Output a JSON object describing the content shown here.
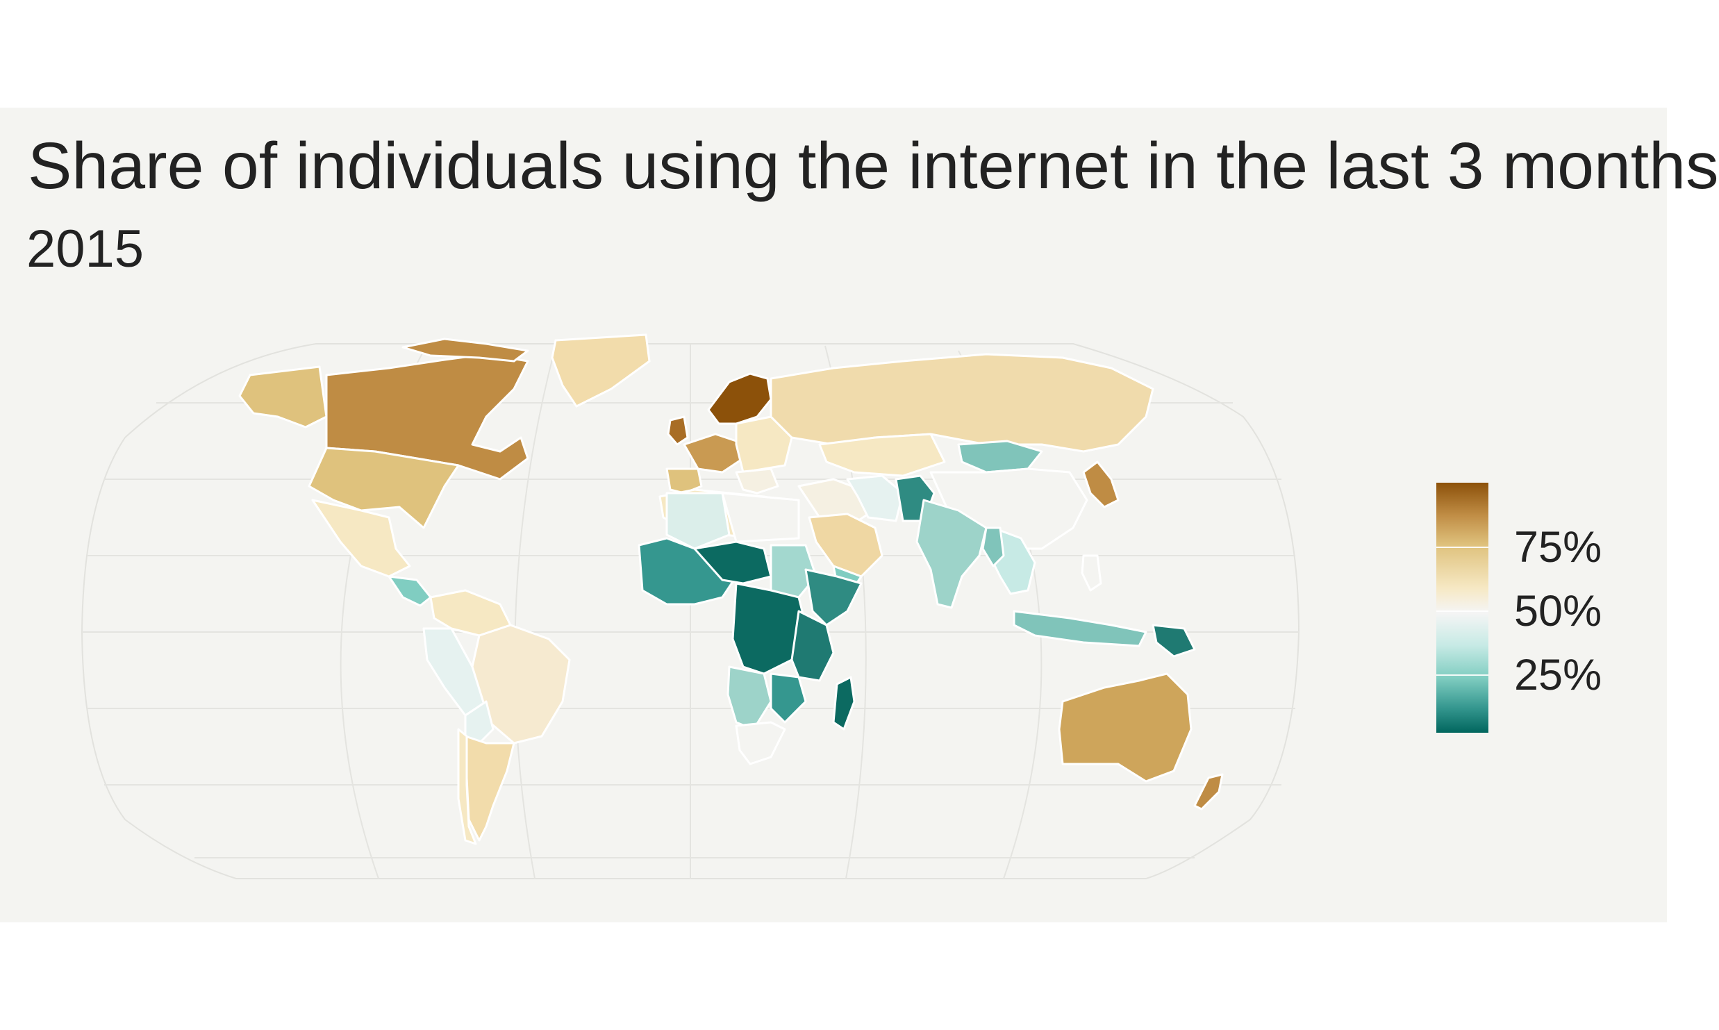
{
  "title": "Share of individuals using the internet in the last 3 months",
  "subtitle": "2015",
  "legend": {
    "labels": [
      "75%",
      "50%",
      "25%"
    ],
    "values": [
      0.75,
      0.5,
      0.25
    ],
    "range": [
      0.0,
      0.95
    ]
  },
  "colors": {
    "panel_background": "#f4f4f1",
    "border": "#ffffff",
    "no_data": "#f4f4f1",
    "scale": [
      "#01665e",
      "#35978f",
      "#80cdc1",
      "#c7eae5",
      "#f5f5f5",
      "#f6e8c3",
      "#dfc27d",
      "#bf8c44",
      "#8c510a"
    ]
  },
  "map_data": {
    "projection": "Robinson",
    "regions": [
      {
        "name": "Canada",
        "value": 0.88
      },
      {
        "name": "United States",
        "value": 0.74
      },
      {
        "name": "Mexico",
        "value": 0.57
      },
      {
        "name": "Brazil",
        "value": 0.58
      },
      {
        "name": "Argentina",
        "value": 0.68
      },
      {
        "name": "Peru",
        "value": 0.41
      },
      {
        "name": "Greenland",
        "value": 0.67
      },
      {
        "name": "Nordic countries",
        "value": 0.95
      },
      {
        "name": "Western Europe",
        "value": 0.85
      },
      {
        "name": "Russia",
        "value": 0.7
      },
      {
        "name": "Mongolia",
        "value": 0.22
      },
      {
        "name": "China",
        "value": 0.5
      },
      {
        "name": "Japan",
        "value": 0.91
      },
      {
        "name": "India",
        "value": 0.26
      },
      {
        "name": "Saudi Arabia",
        "value": 0.7
      },
      {
        "name": "Iran",
        "value": 0.45
      },
      {
        "name": "Afghanistan",
        "value": 0.08
      },
      {
        "name": "Algeria",
        "value": 0.38
      },
      {
        "name": "Niger",
        "value": 0.03
      },
      {
        "name": "Nigeria",
        "value": 0.2
      },
      {
        "name": "DR Congo",
        "value": 0.04
      },
      {
        "name": "Ethiopia",
        "value": 0.12
      },
      {
        "name": "Madagascar",
        "value": 0.04
      },
      {
        "name": "South Africa",
        "value": 0.51
      },
      {
        "name": "Australia",
        "value": 0.85
      },
      {
        "name": "New Zealand",
        "value": 0.88
      },
      {
        "name": "Indonesia",
        "value": 0.22
      }
    ]
  }
}
